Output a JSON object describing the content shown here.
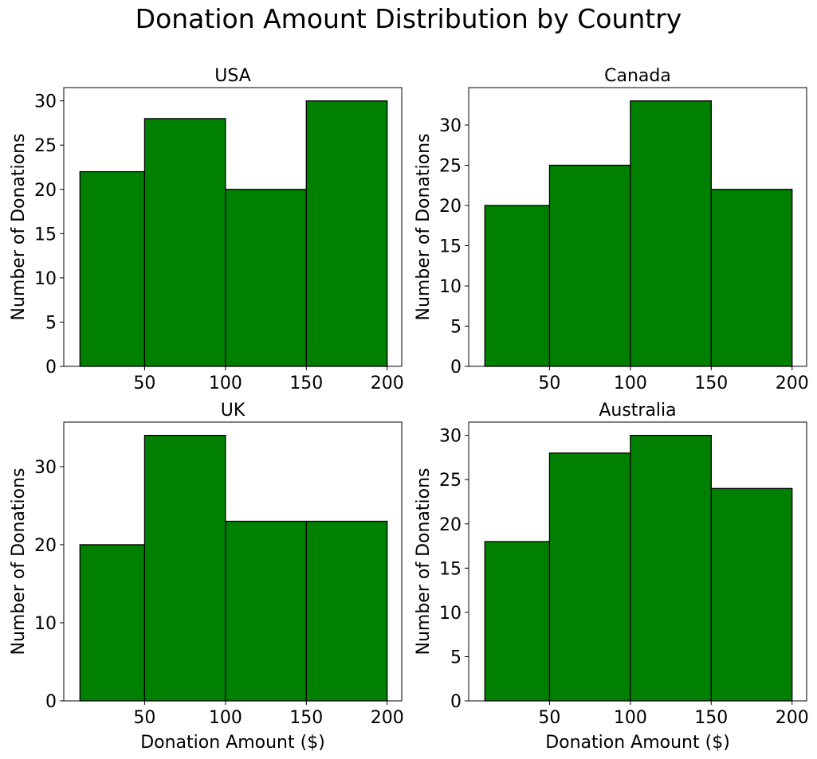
{
  "title": "Donation Amount Distribution by Country",
  "chart_data": [
    {
      "type": "bar",
      "title": "USA",
      "xlabel": "",
      "ylabel": "Number of Donations",
      "bin_edges": [
        10,
        50,
        100,
        150,
        200
      ],
      "values": [
        22,
        28,
        20,
        30
      ],
      "xlim": [
        0,
        209
      ],
      "ylim": [
        0,
        31.5
      ],
      "xticks": [
        50,
        100,
        150,
        200
      ],
      "yticks": [
        0,
        5,
        10,
        15,
        20,
        25,
        30
      ],
      "bar_color": "#008000",
      "edge_color": "#000000",
      "grid": false
    },
    {
      "type": "bar",
      "title": "Canada",
      "xlabel": "",
      "ylabel": "Number of Donations",
      "bin_edges": [
        10,
        50,
        100,
        150,
        200
      ],
      "values": [
        20,
        25,
        33,
        22
      ],
      "xlim": [
        0,
        209
      ],
      "ylim": [
        0,
        34.65
      ],
      "xticks": [
        50,
        100,
        150,
        200
      ],
      "yticks": [
        0,
        5,
        10,
        15,
        20,
        25,
        30
      ],
      "bar_color": "#008000",
      "edge_color": "#000000",
      "grid": false
    },
    {
      "type": "bar",
      "title": "UK",
      "xlabel": "Donation Amount ($)",
      "ylabel": "Number of Donations",
      "bin_edges": [
        10,
        50,
        100,
        150,
        200
      ],
      "values": [
        20,
        34,
        23,
        23
      ],
      "xlim": [
        0,
        209
      ],
      "ylim": [
        0,
        35.7
      ],
      "xticks": [
        50,
        100,
        150,
        200
      ],
      "yticks": [
        0,
        10,
        20,
        30
      ],
      "bar_color": "#008000",
      "edge_color": "#000000",
      "grid": false
    },
    {
      "type": "bar",
      "title": "Australia",
      "xlabel": "Donation Amount ($)",
      "ylabel": "Number of Donations",
      "bin_edges": [
        10,
        50,
        100,
        150,
        200
      ],
      "values": [
        18,
        28,
        30,
        24
      ],
      "xlim": [
        0,
        209
      ],
      "ylim": [
        0,
        31.5
      ],
      "xticks": [
        50,
        100,
        150,
        200
      ],
      "yticks": [
        0,
        5,
        10,
        15,
        20,
        25,
        30
      ],
      "bar_color": "#008000",
      "edge_color": "#000000",
      "grid": false
    }
  ]
}
